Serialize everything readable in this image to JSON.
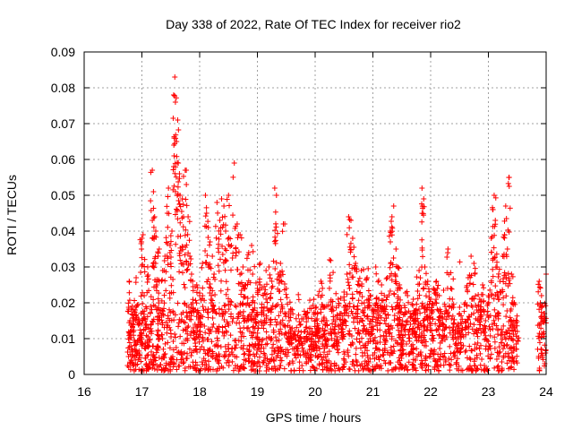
{
  "chart_data": {
    "type": "scatter",
    "title": "Day 338 of 2022, Rate Of TEC Index for receiver rio2",
    "xlabel": "GPS time / hours",
    "ylabel": "ROTI / TECUs",
    "xlim": [
      16,
      24
    ],
    "ylim": [
      0,
      0.09
    ],
    "xticks": [
      16,
      17,
      18,
      19,
      20,
      21,
      22,
      23,
      24
    ],
    "xtick_labels": [
      "16",
      "17",
      "18",
      "19",
      "20",
      "21",
      "22",
      "23",
      "24"
    ],
    "yticks": [
      0,
      0.01,
      0.02,
      0.03,
      0.04,
      0.05,
      0.06,
      0.07,
      0.08,
      0.09
    ],
    "ytick_labels": [
      "0",
      "0.01",
      "0.02",
      "0.03",
      "0.04",
      "0.05",
      "0.06",
      "0.07",
      "0.08",
      "0.09"
    ],
    "grid": true,
    "marker": "+",
    "color": "#ff0000",
    "series": [
      {
        "name": "ROTI",
        "points": [
          [
            16.78,
            0.026
          ],
          [
            16.8,
            0.012
          ],
          [
            16.82,
            0.004
          ],
          [
            16.85,
            0.018
          ],
          [
            16.88,
            0.009
          ],
          [
            16.9,
            0.027
          ],
          [
            16.93,
            0.006
          ],
          [
            16.95,
            0.015
          ],
          [
            16.98,
            0.011
          ],
          [
            17.0,
            0.038
          ],
          [
            17.02,
            0.039
          ],
          [
            17.04,
            0.022
          ],
          [
            17.06,
            0.008
          ],
          [
            17.08,
            0.014
          ],
          [
            17.1,
            0.03
          ],
          [
            17.12,
            0.002
          ],
          [
            17.15,
            0.019
          ],
          [
            17.18,
            0.057
          ],
          [
            17.2,
            0.051
          ],
          [
            17.22,
            0.044
          ],
          [
            17.24,
            0.04
          ],
          [
            17.26,
            0.025
          ],
          [
            17.28,
            0.012
          ],
          [
            17.3,
            0.035
          ],
          [
            17.33,
            0.018
          ],
          [
            17.36,
            0.029
          ],
          [
            17.4,
            0.033
          ],
          [
            17.44,
            0.045
          ],
          [
            17.46,
            0.052
          ],
          [
            17.5,
            0.031
          ],
          [
            17.52,
            0.04
          ],
          [
            17.55,
            0.078
          ],
          [
            17.57,
            0.083
          ],
          [
            17.58,
            0.076
          ],
          [
            17.6,
            0.065
          ],
          [
            17.62,
            0.071
          ],
          [
            17.63,
            0.059
          ],
          [
            17.65,
            0.056
          ],
          [
            17.66,
            0.05
          ],
          [
            17.7,
            0.049
          ],
          [
            17.72,
            0.044
          ],
          [
            17.75,
            0.057
          ],
          [
            17.77,
            0.053
          ],
          [
            17.8,
            0.044
          ],
          [
            17.83,
            0.033
          ],
          [
            17.86,
            0.028
          ],
          [
            17.88,
            0.02
          ],
          [
            17.92,
            0.014
          ],
          [
            17.95,
            0.025
          ],
          [
            18.0,
            0.022
          ],
          [
            18.05,
            0.031
          ],
          [
            18.1,
            0.05
          ],
          [
            18.12,
            0.045
          ],
          [
            18.15,
            0.041
          ],
          [
            18.18,
            0.037
          ],
          [
            18.22,
            0.033
          ],
          [
            18.25,
            0.028
          ],
          [
            18.3,
            0.048
          ],
          [
            18.35,
            0.043
          ],
          [
            18.38,
            0.049
          ],
          [
            18.42,
            0.047
          ],
          [
            18.45,
            0.04
          ],
          [
            18.5,
            0.05
          ],
          [
            18.55,
            0.036
          ],
          [
            18.6,
            0.059
          ],
          [
            18.65,
            0.042
          ],
          [
            18.7,
            0.039
          ],
          [
            18.75,
            0.03
          ],
          [
            18.8,
            0.025
          ],
          [
            18.85,
            0.034
          ],
          [
            18.9,
            0.036
          ],
          [
            18.95,
            0.02
          ],
          [
            19.0,
            0.024
          ],
          [
            19.05,
            0.031
          ],
          [
            19.1,
            0.022
          ],
          [
            19.15,
            0.029
          ],
          [
            19.2,
            0.03
          ],
          [
            19.25,
            0.026
          ],
          [
            19.3,
            0.052
          ],
          [
            19.33,
            0.05
          ],
          [
            19.36,
            0.028
          ],
          [
            19.4,
            0.031
          ],
          [
            19.45,
            0.042
          ],
          [
            19.5,
            0.024
          ],
          [
            19.55,
            0.015
          ],
          [
            19.6,
            0.018
          ],
          [
            19.65,
            0.012
          ],
          [
            19.7,
            0.008
          ],
          [
            19.75,
            0.014
          ],
          [
            19.8,
            0.01
          ],
          [
            19.85,
            0.016
          ],
          [
            19.9,
            0.007
          ],
          [
            19.95,
            0.012
          ],
          [
            20.0,
            0.009
          ],
          [
            20.05,
            0.013
          ],
          [
            20.1,
            0.026
          ],
          [
            20.15,
            0.011
          ],
          [
            20.2,
            0.015
          ],
          [
            20.25,
            0.032
          ],
          [
            20.3,
            0.019
          ],
          [
            20.35,
            0.014
          ],
          [
            20.4,
            0.021
          ],
          [
            20.45,
            0.017
          ],
          [
            20.5,
            0.023
          ],
          [
            20.55,
            0.028
          ],
          [
            20.58,
            0.044
          ],
          [
            20.62,
            0.043
          ],
          [
            20.65,
            0.038
          ],
          [
            20.7,
            0.031
          ],
          [
            20.75,
            0.026
          ],
          [
            20.8,
            0.029
          ],
          [
            20.85,
            0.02
          ],
          [
            20.9,
            0.027
          ],
          [
            20.95,
            0.022
          ],
          [
            21.0,
            0.018
          ],
          [
            21.05,
            0.03
          ],
          [
            21.1,
            0.021
          ],
          [
            21.15,
            0.025
          ],
          [
            21.2,
            0.019
          ],
          [
            21.25,
            0.027
          ],
          [
            21.3,
            0.04
          ],
          [
            21.33,
            0.044
          ],
          [
            21.36,
            0.047
          ],
          [
            21.4,
            0.035
          ],
          [
            21.43,
            0.03
          ],
          [
            21.46,
            0.025
          ],
          [
            21.5,
            0.008
          ],
          [
            21.55,
            0.017
          ],
          [
            21.6,
            0.022
          ],
          [
            21.65,
            0.014
          ],
          [
            21.7,
            0.021
          ],
          [
            21.75,
            0.018
          ],
          [
            21.8,
            0.029
          ],
          [
            21.85,
            0.052
          ],
          [
            21.88,
            0.049
          ],
          [
            21.9,
            0.03
          ],
          [
            21.95,
            0.026
          ],
          [
            22.0,
            0.021
          ],
          [
            22.05,
            0.024
          ],
          [
            22.1,
            0.026
          ],
          [
            22.15,
            0.022
          ],
          [
            22.2,
            0.016
          ],
          [
            22.25,
            0.019
          ],
          [
            22.3,
            0.035
          ],
          [
            22.35,
            0.024
          ],
          [
            22.4,
            0.014
          ],
          [
            22.45,
            0.01
          ],
          [
            22.5,
            0.017
          ],
          [
            22.55,
            0.013
          ],
          [
            22.6,
            0.02
          ],
          [
            22.65,
            0.027
          ],
          [
            22.7,
            0.033
          ],
          [
            22.75,
            0.031
          ],
          [
            22.8,
            0.018
          ],
          [
            22.85,
            0.021
          ],
          [
            22.9,
            0.025
          ],
          [
            22.95,
            0.015
          ],
          [
            23.0,
            0.022
          ],
          [
            23.05,
            0.038
          ],
          [
            23.08,
            0.046
          ],
          [
            23.1,
            0.05
          ],
          [
            23.12,
            0.043
          ],
          [
            23.15,
            0.03
          ],
          [
            23.2,
            0.026
          ],
          [
            23.25,
            0.033
          ],
          [
            23.28,
            0.039
          ],
          [
            23.3,
            0.047
          ],
          [
            23.33,
            0.035
          ],
          [
            23.36,
            0.055
          ],
          [
            23.4,
            0.028
          ],
          [
            23.45,
            0.02
          ],
          [
            23.5,
            0.012
          ],
          [
            23.88,
            0.026
          ],
          [
            23.92,
            0.022
          ],
          [
            23.96,
            0.017
          ],
          [
            24.0,
            0.028
          ]
        ],
        "dense_band": {
          "description": "Dense cluster of ROTI values near the baseline",
          "x_ranges": [
            [
              16.75,
              21.5
            ],
            [
              21.45,
              23.5
            ],
            [
              23.85,
              24.0
            ]
          ],
          "y_range": [
            0.001,
            0.02
          ],
          "typical": 0.009
        }
      }
    ]
  }
}
